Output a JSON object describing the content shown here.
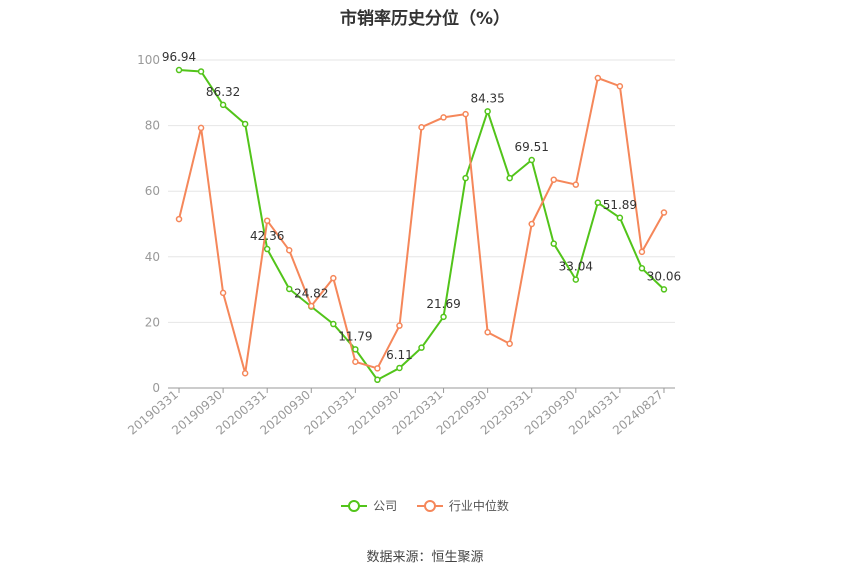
{
  "title": "市销率历史分位（%）",
  "source": "数据来源：恒生聚源",
  "colors": {
    "company": "#52c41a",
    "industry": "#f5875a",
    "grid": "#e6e6e6",
    "axis": "#999999"
  },
  "chart_data": {
    "type": "line",
    "title": "市销率历史分位（%）",
    "ylim": [
      0,
      100
    ],
    "yticks": [
      0,
      20,
      40,
      60,
      80,
      100
    ],
    "grid": true,
    "legend_position": "bottom",
    "x": [
      "20190331",
      "20190630",
      "20190930",
      "20191231",
      "20200331",
      "20200630",
      "20200930",
      "20201231",
      "20210331",
      "20210630",
      "20210930",
      "20211231",
      "20220331",
      "20220630",
      "20220930",
      "20221231",
      "20230331",
      "20230630",
      "20230930",
      "20231231",
      "20240331",
      "20240630",
      "20240827"
    ],
    "xtick_labels": [
      "20190331",
      "20190930",
      "20200331",
      "20200930",
      "20210331",
      "20210930",
      "20220331",
      "20220930",
      "20230331",
      "20230930",
      "20240331",
      "20240827"
    ],
    "series": [
      {
        "name": "公司",
        "color": "#52c41a",
        "values": [
          96.94,
          96.5,
          86.32,
          80.5,
          42.36,
          30.2,
          24.82,
          19.5,
          11.79,
          2.5,
          6.11,
          12.3,
          21.69,
          64.0,
          84.35,
          64.0,
          69.51,
          44.0,
          33.04,
          56.5,
          51.89,
          36.5,
          30.06
        ]
      },
      {
        "name": "行业中位数",
        "color": "#f5875a",
        "values": [
          51.5,
          79.3,
          29.0,
          4.5,
          51.0,
          42.0,
          25.0,
          33.5,
          8.0,
          6.0,
          19.0,
          79.5,
          82.5,
          83.5,
          17.0,
          13.5,
          50.0,
          63.5,
          62.0,
          94.5,
          92.0,
          41.5,
          53.5
        ]
      }
    ],
    "data_labels": [
      {
        "series": 0,
        "index": 0,
        "text": "96.94"
      },
      {
        "series": 0,
        "index": 2,
        "text": "86.32"
      },
      {
        "series": 0,
        "index": 4,
        "text": "42.36"
      },
      {
        "series": 0,
        "index": 6,
        "text": "24.82"
      },
      {
        "series": 0,
        "index": 8,
        "text": "11.79"
      },
      {
        "series": 0,
        "index": 10,
        "text": "6.11"
      },
      {
        "series": 0,
        "index": 12,
        "text": "21.69"
      },
      {
        "series": 0,
        "index": 14,
        "text": "84.35"
      },
      {
        "series": 0,
        "index": 16,
        "text": "69.51"
      },
      {
        "series": 0,
        "index": 18,
        "text": "33.04"
      },
      {
        "series": 0,
        "index": 20,
        "text": "51.89"
      },
      {
        "series": 0,
        "index": 22,
        "text": "30.06"
      }
    ]
  }
}
